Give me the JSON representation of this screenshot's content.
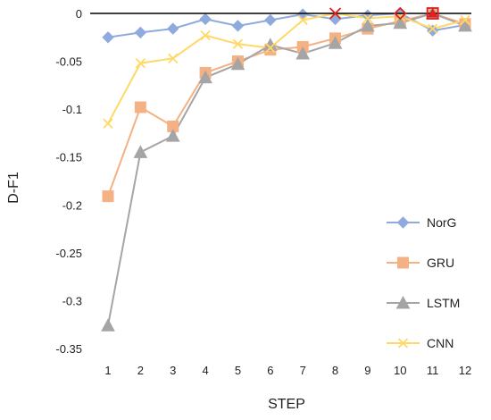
{
  "chart_data": {
    "type": "line",
    "title": "",
    "xlabel": "STEP",
    "ylabel": "D-F1",
    "categories": [
      "1",
      "2",
      "3",
      "4",
      "5",
      "6",
      "7",
      "8",
      "9",
      "10",
      "11",
      "12"
    ],
    "ylim": [
      -0.35,
      0
    ],
    "yticks": [
      0,
      -0.05,
      -0.1,
      -0.15,
      -0.2,
      -0.25,
      -0.3,
      -0.35
    ],
    "ytick_labels": [
      "0",
      "-0.05",
      "-0.1",
      "-0.15",
      "-0.2",
      "-0.25",
      "-0.3",
      "-0.35"
    ],
    "grid": false,
    "legend_position": "right",
    "series": [
      {
        "name": "NorG",
        "color": "#8FAADC",
        "marker": "diamond",
        "values": [
          -0.025,
          -0.02,
          -0.016,
          -0.006,
          -0.013,
          -0.007,
          -0.001,
          -0.006,
          -0.002,
          0.0,
          -0.018,
          -0.012
        ]
      },
      {
        "name": "GRU",
        "color": "#F4B183",
        "marker": "square",
        "values": [
          -0.191,
          -0.098,
          -0.118,
          -0.062,
          -0.05,
          -0.038,
          -0.035,
          -0.026,
          -0.016,
          -0.008,
          0.0,
          -0.011
        ]
      },
      {
        "name": "LSTM",
        "color": "#A5A5A5",
        "marker": "triangle",
        "values": [
          -0.326,
          -0.145,
          -0.128,
          -0.067,
          -0.053,
          -0.033,
          -0.042,
          -0.031,
          -0.013,
          -0.01,
          0.0,
          -0.013
        ]
      },
      {
        "name": "CNN",
        "color": "#FFD966",
        "marker": "x",
        "values": [
          -0.115,
          -0.052,
          -0.047,
          -0.023,
          -0.032,
          -0.036,
          -0.007,
          0.0,
          -0.005,
          -0.003,
          -0.016,
          -0.007
        ]
      }
    ],
    "highlights": [
      {
        "step": "8",
        "value": 0.0,
        "marker": "x",
        "color": "#E02020"
      },
      {
        "step": "10",
        "value": 0.0,
        "marker": "diamond",
        "color": "#E02020"
      },
      {
        "step": "11",
        "value": 0.0,
        "marker": "square",
        "color": "#E02020"
      },
      {
        "step": "11",
        "value": 0.0,
        "marker": "triangle",
        "color": "#E02020"
      }
    ]
  }
}
